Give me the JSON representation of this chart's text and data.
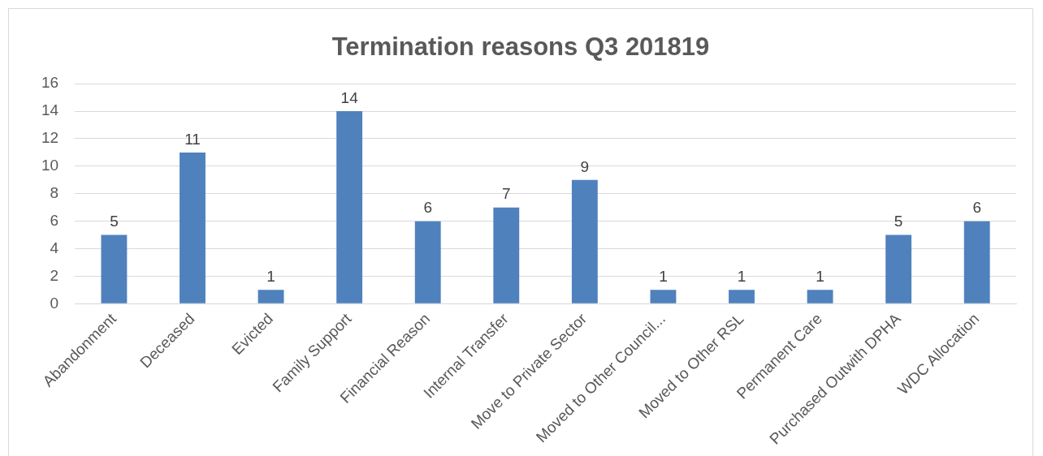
{
  "chart_data": {
    "type": "bar",
    "title": "Termination reasons Q3 201819",
    "categories": [
      "Abandonment",
      "Deceased",
      "Evicted",
      "Family Support",
      "Financial Reason",
      "Internal Transfer",
      "Move to Private Sector",
      "Moved to Other Council...",
      "Moved to Other RSL",
      "Permanent Care",
      "Purchased Outwith DPHA",
      "WDC Allocation"
    ],
    "values": [
      5,
      11,
      1,
      14,
      6,
      7,
      9,
      1,
      1,
      1,
      5,
      6
    ],
    "color": "#4f81bd",
    "ylim": [
      0,
      16
    ],
    "yticks": [
      0,
      2,
      4,
      6,
      8,
      10,
      12,
      14,
      16
    ],
    "grid": "y",
    "data_labels": true,
    "legend": false
  }
}
